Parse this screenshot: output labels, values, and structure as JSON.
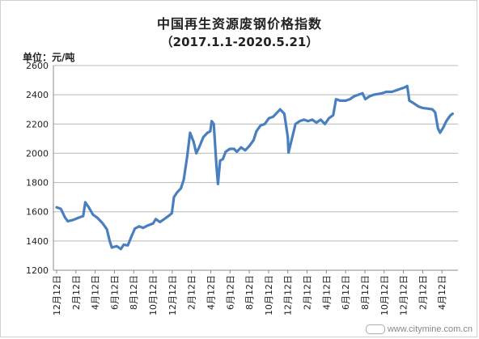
{
  "chart_data": {
    "type": "line",
    "title": "中国再生资源废钢价格指数",
    "subtitle": "（2017.1.1-2020.5.21）",
    "unit_label": "单位：元/吨",
    "ylim": [
      1200,
      2600
    ],
    "y_ticks": [
      1200,
      1400,
      1600,
      1800,
      2000,
      2200,
      2400,
      2600
    ],
    "x_ticks": [
      "12月12日",
      "2月12日",
      "4月12日",
      "6月12日",
      "8月12日",
      "10月12日",
      "12月12日",
      "2月12日",
      "4月12日",
      "6月12日",
      "8月12日",
      "10月12日",
      "12月12日",
      "2月12日",
      "4月12日",
      "6月12日",
      "8月12日",
      "10月12日",
      "12月12日",
      "2月12日",
      "4月12日"
    ],
    "grid": "horizontal",
    "line_color": "#4a7fbf",
    "series": [
      {
        "points": [
          [
            0,
            1630
          ],
          [
            0.3,
            1620
          ],
          [
            0.6,
            1560
          ],
          [
            0.8,
            1535
          ],
          [
            1.2,
            1545
          ],
          [
            1.6,
            1560
          ],
          [
            1.9,
            1570
          ],
          [
            2.05,
            1665
          ],
          [
            2.3,
            1630
          ],
          [
            2.6,
            1580
          ],
          [
            2.9,
            1560
          ],
          [
            3.3,
            1520
          ],
          [
            3.6,
            1480
          ],
          [
            3.8,
            1400
          ],
          [
            3.95,
            1355
          ],
          [
            4.3,
            1365
          ],
          [
            4.6,
            1345
          ],
          [
            4.8,
            1375
          ],
          [
            5.1,
            1370
          ],
          [
            5.35,
            1430
          ],
          [
            5.6,
            1485
          ],
          [
            5.9,
            1500
          ],
          [
            6.2,
            1490
          ],
          [
            6.5,
            1505
          ],
          [
            6.9,
            1520
          ],
          [
            7.1,
            1550
          ],
          [
            7.4,
            1530
          ],
          [
            7.7,
            1550
          ],
          [
            8.0,
            1570
          ],
          [
            8.25,
            1590
          ],
          [
            8.4,
            1700
          ],
          [
            8.6,
            1730
          ],
          [
            8.9,
            1760
          ],
          [
            9.1,
            1820
          ],
          [
            9.35,
            1980
          ],
          [
            9.55,
            2140
          ],
          [
            9.8,
            2080
          ],
          [
            10.0,
            2000
          ],
          [
            10.2,
            2040
          ],
          [
            10.5,
            2110
          ],
          [
            10.8,
            2140
          ],
          [
            11.0,
            2150
          ],
          [
            11.1,
            2220
          ],
          [
            11.25,
            2200
          ],
          [
            11.45,
            1900
          ],
          [
            11.55,
            1790
          ],
          [
            11.7,
            1950
          ],
          [
            11.9,
            1960
          ],
          [
            12.1,
            2010
          ],
          [
            12.4,
            2030
          ],
          [
            12.7,
            2030
          ],
          [
            12.9,
            2010
          ],
          [
            13.2,
            2040
          ],
          [
            13.5,
            2020
          ],
          [
            13.8,
            2050
          ],
          [
            14.1,
            2090
          ],
          [
            14.3,
            2150
          ],
          [
            14.6,
            2190
          ],
          [
            14.9,
            2200
          ],
          [
            15.2,
            2240
          ],
          [
            15.5,
            2250
          ],
          [
            15.8,
            2280
          ],
          [
            16.0,
            2300
          ],
          [
            16.3,
            2270
          ],
          [
            16.55,
            2110
          ],
          [
            16.6,
            2005
          ],
          [
            16.9,
            2120
          ],
          [
            17.1,
            2200
          ],
          [
            17.4,
            2220
          ],
          [
            17.7,
            2230
          ],
          [
            18.0,
            2220
          ],
          [
            18.3,
            2230
          ],
          [
            18.6,
            2210
          ],
          [
            18.9,
            2230
          ],
          [
            19.2,
            2200
          ],
          [
            19.5,
            2240
          ],
          [
            19.8,
            2260
          ],
          [
            20.0,
            2370
          ],
          [
            20.3,
            2360
          ],
          [
            20.7,
            2360
          ],
          [
            21.0,
            2370
          ],
          [
            21.3,
            2390
          ],
          [
            21.6,
            2400
          ],
          [
            21.9,
            2410
          ],
          [
            22.1,
            2370
          ],
          [
            22.4,
            2390
          ],
          [
            22.7,
            2400
          ],
          [
            23.0,
            2405
          ],
          [
            23.3,
            2410
          ],
          [
            23.6,
            2420
          ],
          [
            24.0,
            2420
          ],
          [
            24.3,
            2430
          ],
          [
            24.6,
            2440
          ],
          [
            24.9,
            2450
          ],
          [
            25.1,
            2460
          ],
          [
            25.25,
            2360
          ],
          [
            25.6,
            2340
          ],
          [
            25.9,
            2320
          ],
          [
            26.2,
            2310
          ],
          [
            26.6,
            2305
          ],
          [
            26.9,
            2300
          ],
          [
            27.1,
            2280
          ],
          [
            27.3,
            2170
          ],
          [
            27.45,
            2140
          ],
          [
            27.7,
            2180
          ],
          [
            27.9,
            2220
          ],
          [
            28.2,
            2260
          ],
          [
            28.35,
            2270
          ]
        ]
      }
    ]
  },
  "watermark": "www.citymine.com.cn"
}
